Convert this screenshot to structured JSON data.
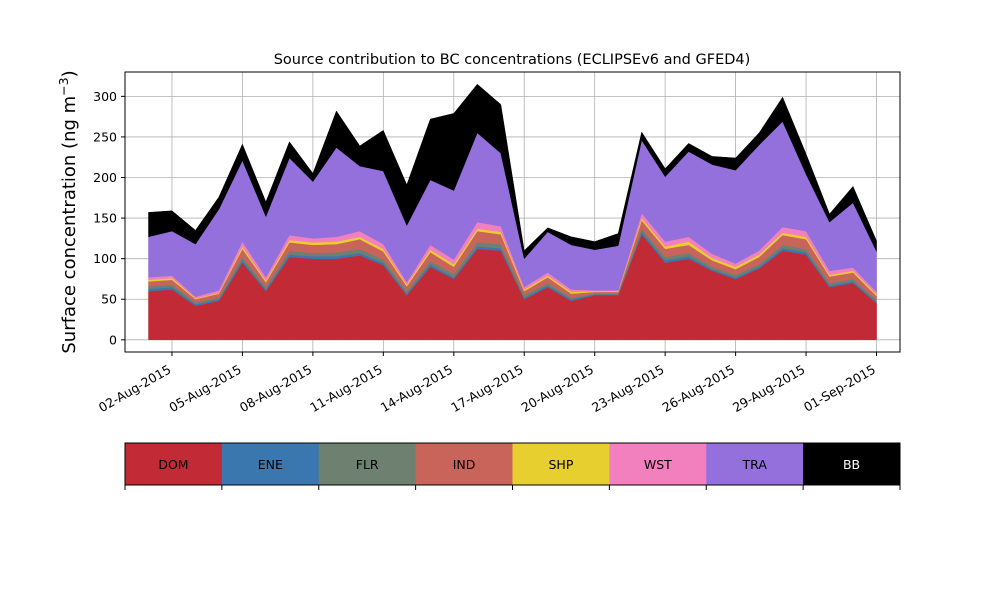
{
  "chart_data": {
    "type": "area",
    "stacked": true,
    "title": "Source contribution to BC concentrations (ECLIPSEv6 and GFED4)",
    "xlabel": "",
    "ylabel": "Surface concentration (ng m⁻³)",
    "ylabel_text": "Surface concentration (ng m",
    "ylabel_sup": "−3",
    "ylabel_close": ")",
    "ylim": [
      -15,
      330
    ],
    "y_ticks": [
      0,
      50,
      100,
      150,
      200,
      250,
      300
    ],
    "x_range": [
      "2015-07-31",
      "2015-09-02"
    ],
    "x_ticks": [
      "02-Aug-2015",
      "05-Aug-2015",
      "08-Aug-2015",
      "11-Aug-2015",
      "14-Aug-2015",
      "17-Aug-2015",
      "20-Aug-2015",
      "23-Aug-2015",
      "26-Aug-2015",
      "29-Aug-2015",
      "01-Sep-2015"
    ],
    "grid": true,
    "x": [
      "2015-08-01",
      "2015-08-02",
      "2015-08-03",
      "2015-08-04",
      "2015-08-05",
      "2015-08-06",
      "2015-08-07",
      "2015-08-08",
      "2015-08-09",
      "2015-08-10",
      "2015-08-11",
      "2015-08-12",
      "2015-08-13",
      "2015-08-14",
      "2015-08-15",
      "2015-08-16",
      "2015-08-17",
      "2015-08-18",
      "2015-08-19",
      "2015-08-20",
      "2015-08-21",
      "2015-08-22",
      "2015-08-23",
      "2015-08-24",
      "2015-08-25",
      "2015-08-26",
      "2015-08-27",
      "2015-08-28",
      "2015-08-29",
      "2015-08-30",
      "2015-08-31",
      "2015-09-01"
    ],
    "series": [
      {
        "name": "DOM",
        "color": "#c22a36",
        "values": [
          60,
          62,
          42,
          48,
          95,
          60,
          102,
          100,
          100,
          104,
          92,
          55,
          90,
          75,
          112,
          110,
          50,
          65,
          48,
          55,
          55,
          130,
          95,
          100,
          85,
          75,
          88,
          110,
          105,
          65,
          70,
          45
        ]
      },
      {
        "name": "ENE",
        "color": "#3a77af",
        "values": [
          3,
          3,
          2,
          2,
          3,
          2,
          3,
          3,
          3,
          3,
          3,
          2,
          3,
          2,
          3,
          3,
          2,
          2,
          2,
          1,
          1,
          3,
          3,
          3,
          2,
          2,
          2,
          3,
          3,
          2,
          2,
          2
        ]
      },
      {
        "name": "FLR",
        "color": "#6e8070",
        "values": [
          3,
          3,
          2,
          2,
          4,
          3,
          5,
          4,
          5,
          5,
          4,
          3,
          4,
          4,
          5,
          5,
          3,
          3,
          2,
          1,
          1,
          4,
          4,
          4,
          3,
          3,
          3,
          4,
          4,
          3,
          3,
          2
        ]
      },
      {
        "name": "IND",
        "color": "#c9645a",
        "values": [
          6,
          6,
          4,
          5,
          10,
          6,
          10,
          10,
          10,
          12,
          10,
          6,
          11,
          9,
          14,
          12,
          5,
          7,
          5,
          2,
          2,
          10,
          10,
          10,
          8,
          7,
          9,
          12,
          12,
          8,
          8,
          5
        ]
      },
      {
        "name": "SHP",
        "color": "#e6cf2f",
        "values": [
          2,
          2,
          1,
          1,
          3,
          2,
          3,
          3,
          3,
          3,
          3,
          2,
          3,
          3,
          3,
          3,
          2,
          2,
          2,
          1,
          1,
          3,
          3,
          4,
          3,
          3,
          3,
          3,
          3,
          2,
          2,
          2
        ]
      },
      {
        "name": "WST",
        "color": "#f27fbe",
        "values": [
          3,
          3,
          2,
          3,
          6,
          4,
          6,
          5,
          6,
          7,
          6,
          3,
          6,
          6,
          8,
          7,
          3,
          4,
          3,
          1,
          1,
          6,
          6,
          6,
          5,
          4,
          5,
          7,
          7,
          5,
          4,
          3
        ]
      },
      {
        "name": "TRA",
        "color": "#9370db",
        "values": [
          50,
          55,
          65,
          100,
          100,
          75,
          95,
          70,
          110,
          80,
          90,
          70,
          80,
          85,
          110,
          90,
          35,
          50,
          55,
          50,
          55,
          90,
          80,
          105,
          110,
          115,
          130,
          130,
          70,
          60,
          80,
          50
        ]
      },
      {
        "name": "BB",
        "color": "#000000",
        "values": [
          30,
          25,
          17,
          15,
          20,
          18,
          20,
          10,
          45,
          25,
          50,
          50,
          75,
          95,
          60,
          60,
          10,
          5,
          10,
          10,
          15,
          10,
          10,
          10,
          10,
          15,
          15,
          30,
          25,
          10,
          20,
          13
        ]
      }
    ]
  }
}
